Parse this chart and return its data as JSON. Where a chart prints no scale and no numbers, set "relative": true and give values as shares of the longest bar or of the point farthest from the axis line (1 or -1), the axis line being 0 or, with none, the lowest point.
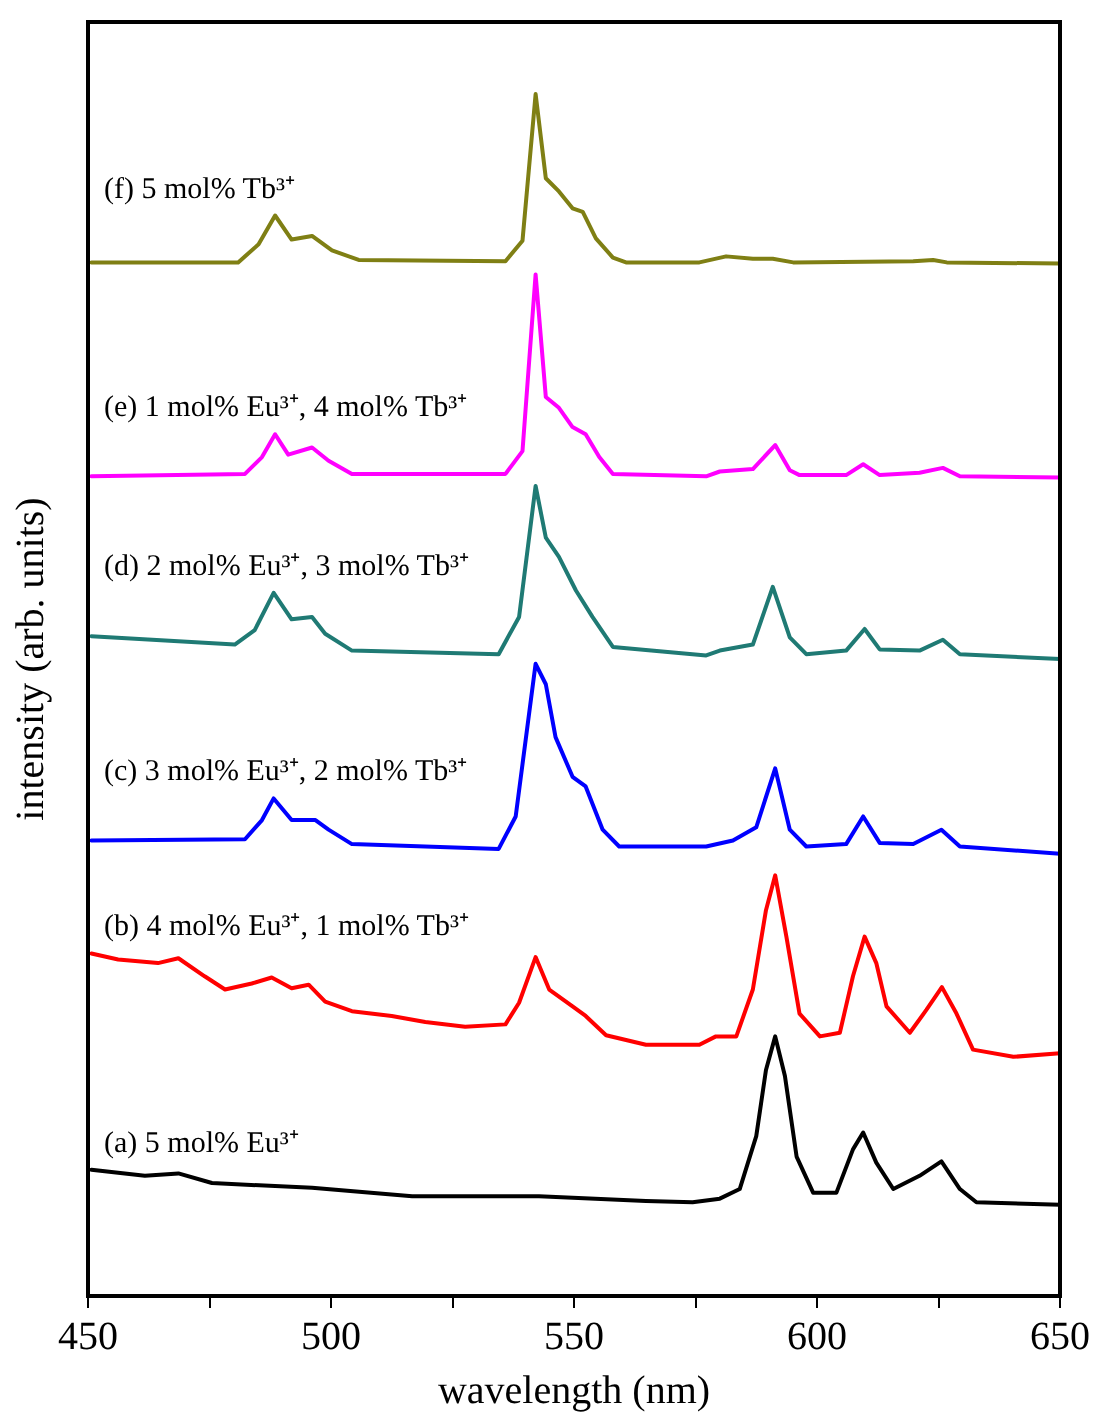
{
  "chart_data": {
    "type": "line",
    "xlabel": "wavelength (nm)",
    "ylabel": "intensity (arb. units)",
    "relative": true,
    "xlim": [
      450,
      650
    ],
    "xticks": [
      450,
      {
        "value": 475,
        "label": null
      },
      500,
      {
        "value": 525,
        "label": null
      },
      550,
      {
        "value": 575,
        "label": null
      },
      600,
      {
        "value": 625,
        "label": null
      },
      650
    ],
    "grid": false,
    "legend": false,
    "marker": "none",
    "line_style": "solid",
    "series": [
      {
        "name": "(f) 5 mol% Tb³⁺",
        "color": "#7f7f14",
        "x": [
          450.7,
          480.9,
          485.1,
          488.5,
          491.9,
          496.1,
          500.2,
          505.7,
          535.9,
          539.4,
          542.1,
          544.2,
          546.9,
          549.7,
          551.8,
          554.5,
          558.0,
          560.7,
          575.8,
          581.3,
          586.8,
          590.9,
          595.1,
          619.8,
          623.9,
          626.7,
          650
        ],
        "values": [
          0.86,
          0.86,
          0.875,
          0.899,
          0.879,
          0.882,
          0.87,
          0.862,
          0.861,
          0.878,
          1.0,
          0.93,
          0.919,
          0.905,
          0.902,
          0.88,
          0.864,
          0.86,
          0.86,
          0.865,
          0.863,
          0.863,
          0.86,
          0.861,
          0.862,
          0.86,
          0.859
        ]
      },
      {
        "name": "(e) 1 mol% Eu³⁺, 4 mol% Tb³⁺",
        "color": "#ff00ff",
        "x": [
          450.7,
          482.3,
          485.8,
          488.5,
          491.2,
          496.1,
          499.5,
          504.3,
          535.9,
          539.4,
          542.1,
          544.2,
          546.9,
          549.7,
          552.4,
          555.2,
          558.0,
          577.2,
          580.0,
          586.8,
          591.4,
          594.4,
          596.4,
          606.0,
          609.5,
          612.9,
          621.1,
          625.9,
          629.4,
          650
        ],
        "values": [
          0.682,
          0.684,
          0.698,
          0.717,
          0.7,
          0.706,
          0.695,
          0.684,
          0.684,
          0.703,
          0.85,
          0.748,
          0.739,
          0.723,
          0.717,
          0.698,
          0.684,
          0.682,
          0.686,
          0.688,
          0.708,
          0.687,
          0.683,
          0.683,
          0.692,
          0.683,
          0.685,
          0.689,
          0.682,
          0.681
        ]
      },
      {
        "name": "(d) 2 mol% Eu³⁺, 3 mol% Tb³⁺",
        "color": "#1f7a74",
        "x": [
          450.7,
          480.2,
          484.3,
          488.2,
          491.9,
          496.1,
          498.8,
          504.3,
          534.5,
          538.7,
          542.1,
          544.2,
          546.9,
          550.4,
          553.8,
          558.0,
          577.2,
          580.0,
          586.8,
          590.9,
          594.4,
          597.8,
          606.0,
          609.8,
          612.9,
          621.1,
          625.9,
          629.4,
          650
        ],
        "values": [
          0.549,
          0.542,
          0.554,
          0.585,
          0.563,
          0.565,
          0.551,
          0.537,
          0.534,
          0.565,
          0.674,
          0.631,
          0.615,
          0.587,
          0.565,
          0.54,
          0.533,
          0.537,
          0.542,
          0.59,
          0.548,
          0.534,
          0.537,
          0.555,
          0.538,
          0.537,
          0.546,
          0.534,
          0.53
        ]
      },
      {
        "name": "(c) 3 mol% Eu³⁺, 2 mol% Tb³⁺",
        "color": "#0000ff",
        "x": [
          450.7,
          482.3,
          485.8,
          488.2,
          491.9,
          496.8,
          499.5,
          504.3,
          534.5,
          538.0,
          542.1,
          544.2,
          546.2,
          549.7,
          552.4,
          555.9,
          559.3,
          577.2,
          582.7,
          587.5,
          591.4,
          594.4,
          597.8,
          606.0,
          609.5,
          612.9,
          619.8,
          625.6,
          629.4,
          650
        ],
        "values": [
          0.379,
          0.38,
          0.396,
          0.414,
          0.396,
          0.396,
          0.388,
          0.376,
          0.372,
          0.399,
          0.526,
          0.509,
          0.465,
          0.432,
          0.424,
          0.388,
          0.374,
          0.374,
          0.379,
          0.39,
          0.439,
          0.388,
          0.374,
          0.376,
          0.399,
          0.377,
          0.376,
          0.388,
          0.374,
          0.368
        ]
      },
      {
        "name": "(b) 4 mol% Eu³⁺, 1 mol% Tb³⁺",
        "color": "#ff0000",
        "x": [
          450.7,
          456.2,
          464.4,
          468.6,
          474.0,
          478.2,
          483.7,
          487.8,
          491.9,
          495.4,
          498.8,
          504.3,
          512.5,
          519.4,
          527.6,
          535.9,
          538.7,
          542.1,
          544.9,
          549.7,
          552.4,
          556.6,
          564.8,
          575.8,
          579.2,
          583.4,
          586.8,
          589.5,
          591.4,
          593.7,
          596.4,
          600.6,
          604.7,
          607.4,
          609.8,
          612.2,
          614.3,
          619.1,
          622.5,
          625.7,
          628.7,
          632.1,
          640.4,
          650
        ],
        "values": [
          0.285,
          0.28,
          0.277,
          0.281,
          0.266,
          0.255,
          0.26,
          0.265,
          0.256,
          0.259,
          0.245,
          0.237,
          0.233,
          0.228,
          0.224,
          0.226,
          0.244,
          0.282,
          0.255,
          0.241,
          0.233,
          0.217,
          0.209,
          0.209,
          0.216,
          0.216,
          0.255,
          0.321,
          0.35,
          0.299,
          0.235,
          0.216,
          0.219,
          0.266,
          0.299,
          0.277,
          0.241,
          0.219,
          0.238,
          0.257,
          0.235,
          0.205,
          0.199,
          0.202
        ]
      },
      {
        "name": "(a) 5 mol% Eu³⁺",
        "color": "#000000",
        "x": [
          450.7,
          461.7,
          468.6,
          475.5,
          496.1,
          516.7,
          542.8,
          564.8,
          574.4,
          580.0,
          584.1,
          587.5,
          589.5,
          591.4,
          593.4,
          595.8,
          599.2,
          604.0,
          607.4,
          609.5,
          612.2,
          615.7,
          621.1,
          625.6,
          629.4,
          632.8,
          650
        ],
        "values": [
          0.105,
          0.1,
          0.102,
          0.094,
          0.09,
          0.083,
          0.083,
          0.079,
          0.078,
          0.081,
          0.089,
          0.133,
          0.188,
          0.216,
          0.183,
          0.116,
          0.086,
          0.086,
          0.122,
          0.136,
          0.111,
          0.089,
          0.1,
          0.112,
          0.089,
          0.078,
          0.076
        ]
      }
    ]
  }
}
